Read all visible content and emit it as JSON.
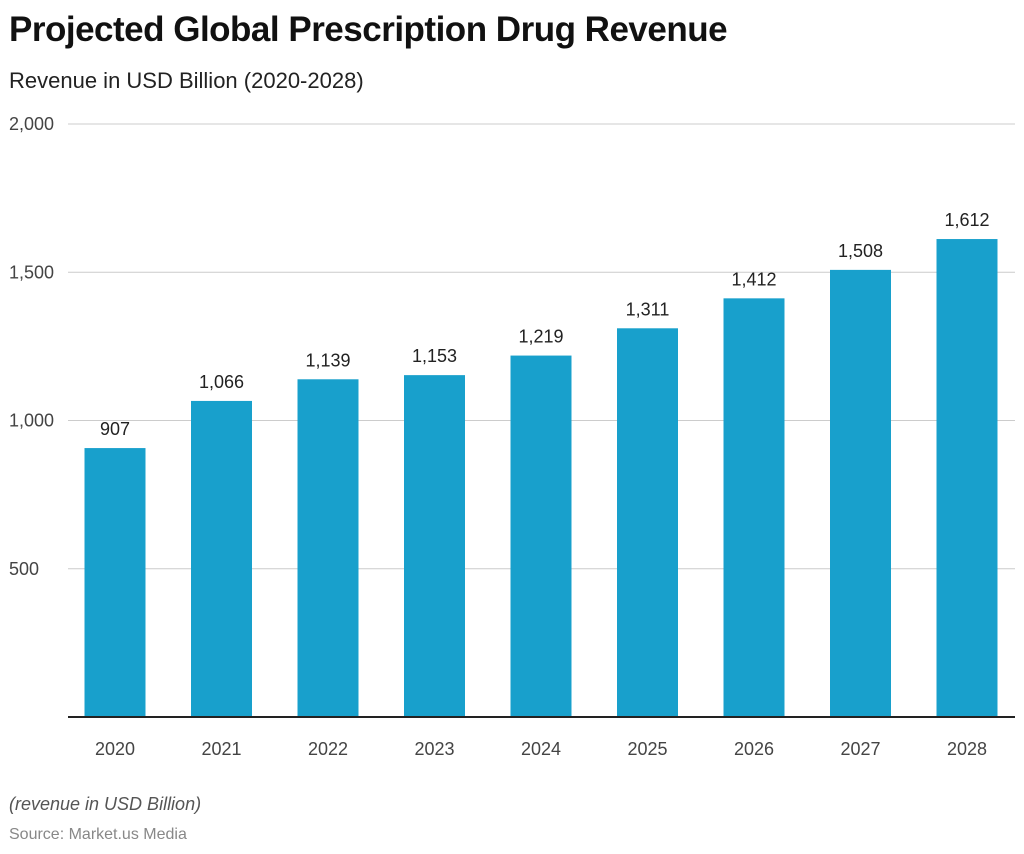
{
  "title": "Projected Global Prescription Drug Revenue",
  "subtitle": "Revenue in USD Billion (2020-2028)",
  "note": "(revenue in USD Billion)",
  "source": "Source: Market.us Media",
  "chart_data": {
    "type": "bar",
    "categories": [
      "2020",
      "2021",
      "2022",
      "2023",
      "2024",
      "2025",
      "2026",
      "2027",
      "2028"
    ],
    "values": [
      907,
      1066,
      1139,
      1153,
      1219,
      1311,
      1412,
      1508,
      1612
    ],
    "data_labels": [
      "907",
      "1,066",
      "1,139",
      "1,153",
      "1,219",
      "1,311",
      "1,412",
      "1,508",
      "1,612"
    ],
    "ylim": [
      0,
      2000
    ],
    "yticks": [
      500,
      1000,
      1500,
      2000
    ],
    "ytick_labels": [
      "500",
      "1,000",
      "1,500",
      "2,000"
    ],
    "grid": true,
    "bar_color": "#18A0CC"
  }
}
